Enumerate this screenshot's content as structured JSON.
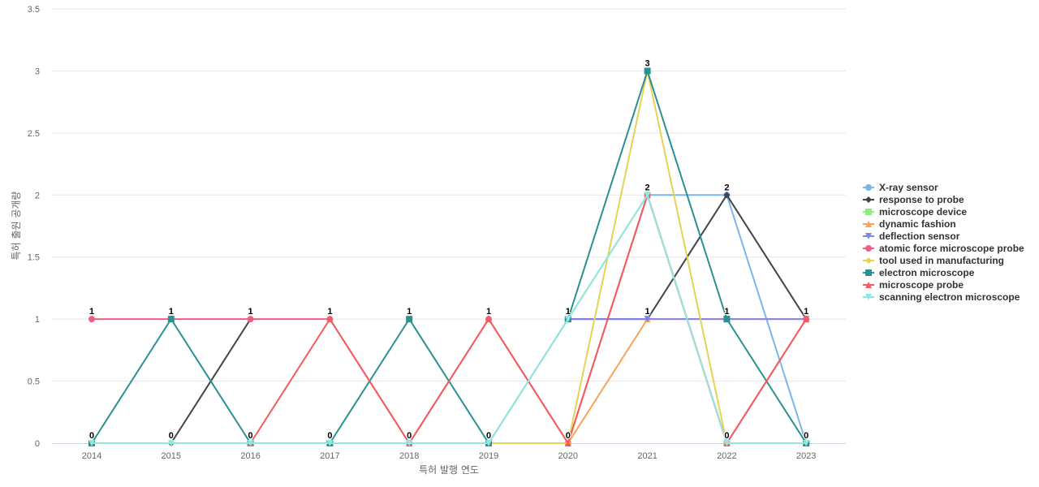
{
  "chart_data": {
    "type": "line",
    "title": "",
    "xlabel": "특허 발행 연도",
    "ylabel": "특허 출원 공개량",
    "ylim": [
      0,
      3.5
    ],
    "y_ticks": [
      "0",
      "0.5",
      "1",
      "1.5",
      "2",
      "2.5",
      "3",
      "3.5"
    ],
    "grid": true,
    "legend_position": "right",
    "categories": [
      "2014",
      "2015",
      "2016",
      "2017",
      "2018",
      "2019",
      "2020",
      "2021",
      "2022",
      "2023"
    ],
    "series": [
      {
        "name": "X-ray sensor",
        "color": "#7cb5ec",
        "marker": "circle",
        "values": [
          null,
          null,
          null,
          null,
          null,
          null,
          1,
          2,
          2,
          0
        ]
      },
      {
        "name": "response to probe",
        "color": "#434348",
        "marker": "diamond",
        "values": [
          null,
          0,
          1,
          null,
          null,
          null,
          1,
          1,
          2,
          1
        ]
      },
      {
        "name": "microscope device",
        "color": "#90ed7d",
        "marker": "square",
        "values": [
          null,
          null,
          null,
          null,
          null,
          null,
          1,
          2,
          0,
          null
        ]
      },
      {
        "name": "dynamic fashion",
        "color": "#f7a35c",
        "marker": "triangle",
        "values": [
          null,
          null,
          null,
          null,
          null,
          null,
          0,
          1,
          1,
          1
        ]
      },
      {
        "name": "deflection sensor",
        "color": "#8085e9",
        "marker": "triangle-down",
        "values": [
          null,
          null,
          null,
          null,
          null,
          null,
          1,
          1,
          1,
          1
        ]
      },
      {
        "name": "atomic force microscope probe",
        "color": "#f15c80",
        "marker": "circle",
        "values": [
          1,
          1,
          1,
          1,
          0,
          1,
          0,
          2,
          0,
          1
        ]
      },
      {
        "name": "tool used in manufacturing",
        "color": "#e4d354",
        "marker": "diamond",
        "values": [
          null,
          null,
          null,
          null,
          null,
          0,
          0,
          3,
          0,
          null
        ]
      },
      {
        "name": "electron microscope",
        "color": "#2b908f",
        "marker": "square",
        "values": [
          0,
          1,
          0,
          0,
          1,
          0,
          1,
          3,
          1,
          0
        ]
      },
      {
        "name": "microscope probe",
        "color": "#f45b5b",
        "marker": "triangle",
        "values": [
          null,
          null,
          0,
          1,
          0,
          1,
          0,
          2,
          0,
          1
        ]
      },
      {
        "name": "scanning electron microscope",
        "color": "#91e8e1",
        "marker": "triangle-down",
        "values": [
          0,
          0,
          0,
          0,
          0,
          0,
          1,
          2,
          0,
          0
        ]
      }
    ],
    "data_labels": [
      {
        "category": "2014",
        "lower": "0",
        "upper": "1"
      },
      {
        "category": "2015",
        "lower": "0",
        "upper": "1"
      },
      {
        "category": "2016",
        "lower": "0",
        "upper": "1"
      },
      {
        "category": "2017",
        "lower": "0",
        "upper": "1"
      },
      {
        "category": "2018",
        "lower": "0",
        "upper": "1"
      },
      {
        "category": "2019",
        "lower": "0",
        "upper": "1"
      },
      {
        "category": "2020",
        "lower": "0",
        "upper": "1"
      },
      {
        "category": "2021",
        "lower": "2",
        "upper": "3",
        "middle": "1"
      },
      {
        "category": "2022",
        "lower": "0",
        "upper": "2",
        "middle": "1"
      },
      {
        "category": "2023",
        "lower": "0",
        "upper": "1"
      }
    ]
  }
}
